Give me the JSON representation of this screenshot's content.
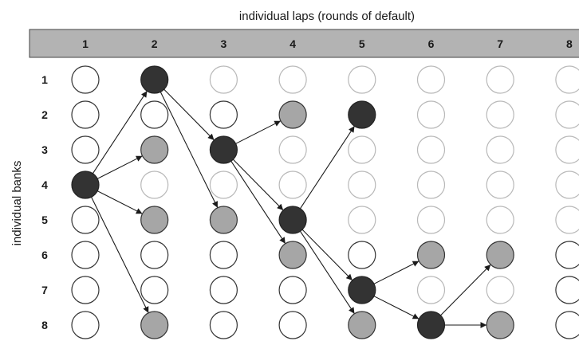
{
  "top_title": "individual laps (rounds of default)",
  "side_title": "individual banks",
  "columns": [
    "1",
    "2",
    "3",
    "4",
    "5",
    "6",
    "7",
    "8"
  ],
  "rows": [
    "1",
    "2",
    "3",
    "4",
    "5",
    "6",
    "7",
    "8"
  ],
  "colors": {
    "header_bg": "#b3b3b3",
    "defaulted": "#333333",
    "affected": "#a6a6a6",
    "unaffected_dark_outline": "#333333",
    "unaffected_light_outline": "#b8b8b8",
    "edge": "#1a1a1a"
  },
  "node_states": [
    [
      "W",
      "D",
      "L",
      "L",
      "L",
      "L",
      "L",
      "L"
    ],
    [
      "W",
      "W",
      "W",
      "G",
      "D",
      "L",
      "L",
      "L"
    ],
    [
      "W",
      "G",
      "D",
      "L",
      "L",
      "L",
      "L",
      "L"
    ],
    [
      "D",
      "L",
      "L",
      "L",
      "L",
      "L",
      "L",
      "L"
    ],
    [
      "W",
      "G",
      "G",
      "D",
      "L",
      "L",
      "L",
      "L"
    ],
    [
      "W",
      "W",
      "W",
      "G",
      "W",
      "G",
      "G",
      "W"
    ],
    [
      "W",
      "W",
      "W",
      "W",
      "D",
      "L",
      "L",
      "W"
    ],
    [
      "W",
      "G",
      "W",
      "W",
      "G",
      "D",
      "G",
      "W"
    ]
  ],
  "edges": [
    [
      [
        4,
        1
      ],
      [
        1,
        2
      ]
    ],
    [
      [
        4,
        1
      ],
      [
        3,
        2
      ]
    ],
    [
      [
        4,
        1
      ],
      [
        5,
        2
      ]
    ],
    [
      [
        4,
        1
      ],
      [
        8,
        2
      ]
    ],
    [
      [
        1,
        2
      ],
      [
        3,
        3
      ]
    ],
    [
      [
        1,
        2
      ],
      [
        5,
        3
      ]
    ],
    [
      [
        3,
        3
      ],
      [
        2,
        4
      ]
    ],
    [
      [
        3,
        3
      ],
      [
        5,
        4
      ]
    ],
    [
      [
        3,
        3
      ],
      [
        6,
        4
      ]
    ],
    [
      [
        5,
        4
      ],
      [
        2,
        5
      ]
    ],
    [
      [
        5,
        4
      ],
      [
        7,
        5
      ]
    ],
    [
      [
        5,
        4
      ],
      [
        8,
        5
      ]
    ],
    [
      [
        7,
        5
      ],
      [
        6,
        6
      ]
    ],
    [
      [
        7,
        5
      ],
      [
        8,
        6
      ]
    ],
    [
      [
        8,
        6
      ],
      [
        6,
        7
      ]
    ],
    [
      [
        8,
        6
      ],
      [
        8,
        7
      ]
    ]
  ]
}
